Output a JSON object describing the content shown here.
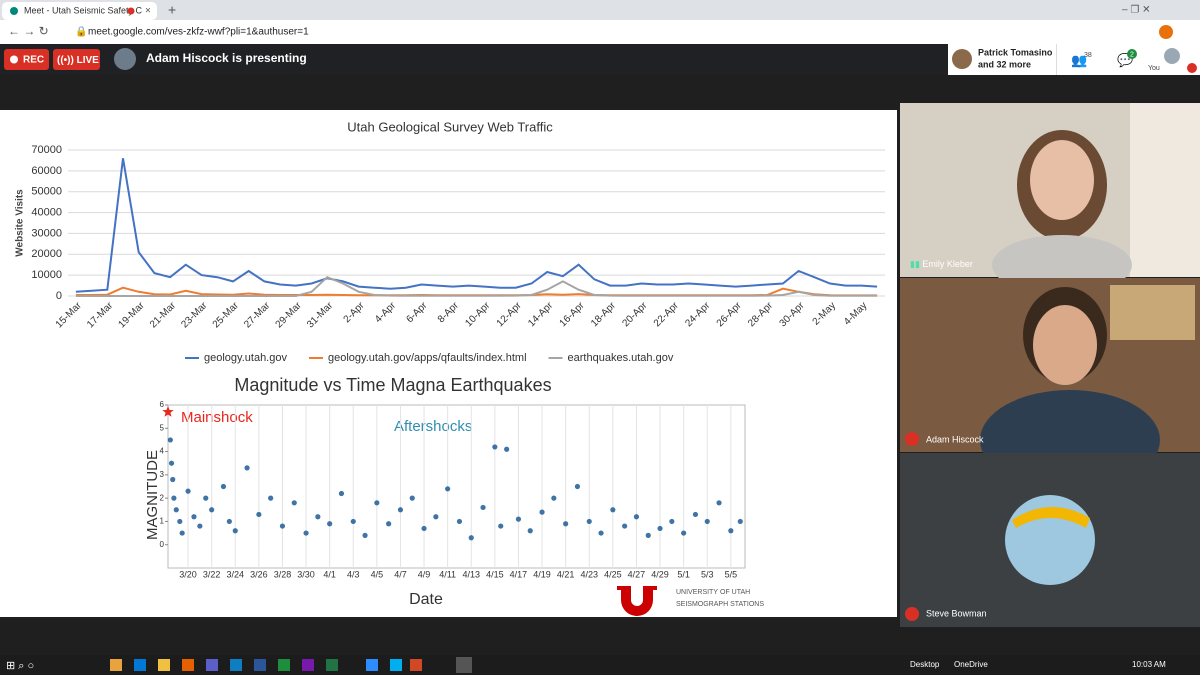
{
  "browser": {
    "tab_title": "Meet - Utah Seismic Safety C",
    "url": "meet.google.com/ves-zkfz-wwf?pli=1&authuser=1"
  },
  "meet": {
    "rec": "REC",
    "live": "LIVE",
    "presenting": "Adam Hiscock is presenting",
    "participants_name": "Patrick Tomasino",
    "participants_more": "and 32 more",
    "participant_count": 38,
    "chat_count": 2,
    "self_label": "You"
  },
  "slide": {
    "web_traffic": {
      "type": "line",
      "title": "Utah Geological Survey Web Traffic",
      "y_label": "Website Visits",
      "categories": [
        "15-Mar",
        null,
        "17-Mar",
        null,
        "19-Mar",
        null,
        "21-Mar",
        null,
        "23-Mar",
        null,
        "25-Mar",
        null,
        "27-Mar",
        null,
        "29-Mar",
        null,
        "31-Mar",
        null,
        "2-Apr",
        null,
        "4-Apr",
        null,
        "6-Apr",
        null,
        "8-Apr",
        null,
        "10-Apr",
        null,
        "12-Apr",
        null,
        "14-Apr",
        null,
        "16-Apr",
        null,
        "18-Apr",
        null,
        "20-Apr",
        null,
        "22-Apr",
        null,
        "24-Apr",
        null,
        "26-Apr",
        null,
        "28-Apr",
        null,
        "30-Apr",
        null,
        "2-May",
        null,
        "4-May",
        null
      ],
      "series": [
        {
          "name": "geology.utah.gov",
          "color": "#4472c4",
          "values": [
            2000,
            2500,
            3000,
            66000,
            21000,
            11000,
            9000,
            15000,
            10000,
            9000,
            7000,
            12000,
            7000,
            5500,
            5000,
            6000,
            8500,
            7000,
            4500,
            4000,
            3500,
            4000,
            5500,
            5000,
            4500,
            5000,
            4500,
            4000,
            4000,
            6000,
            11500,
            9500,
            15000,
            8000,
            5000,
            5000,
            6000,
            5500,
            5500,
            6000,
            5500,
            5000,
            4500,
            5000,
            5500,
            6000,
            12000,
            9000,
            6000,
            5000,
            5000,
            4500
          ]
        },
        {
          "name": "geology.utah.gov/apps/qfaults/index.html",
          "color": "#ed7d31",
          "values": [
            500,
            500,
            600,
            4000,
            2000,
            800,
            700,
            2500,
            900,
            700,
            600,
            1200,
            600,
            500,
            500,
            500,
            600,
            500,
            400,
            400,
            400,
            400,
            500,
            400,
            400,
            400,
            400,
            400,
            400,
            500,
            800,
            600,
            900,
            500,
            400,
            400,
            400,
            400,
            400,
            400,
            400,
            400,
            400,
            400,
            500,
            3500,
            2000,
            800,
            400,
            300,
            300,
            300
          ]
        },
        {
          "name": "earthquakes.utah.gov",
          "color": "#a5a5a5",
          "values": [
            0,
            0,
            0,
            0,
            0,
            0,
            0,
            0,
            0,
            0,
            0,
            0,
            0,
            0,
            0,
            2000,
            9000,
            6000,
            2000,
            500,
            200,
            100,
            100,
            100,
            100,
            100,
            100,
            100,
            200,
            500,
            3000,
            7000,
            3000,
            500,
            200,
            100,
            100,
            100,
            100,
            100,
            100,
            100,
            100,
            100,
            200,
            500,
            2000,
            500,
            100,
            100,
            100,
            100
          ]
        }
      ],
      "ylim": [
        0,
        70000
      ],
      "yticks": [
        0,
        10000,
        20000,
        30000,
        40000,
        50000,
        60000,
        70000
      ],
      "grid": true
    },
    "magnitude": {
      "type": "scatter",
      "title": "Magnitude vs Time Magna Earthquakes",
      "y_label": "MAGNITUDE",
      "x_label": "Date",
      "mainshock_label": "Mainshock",
      "aftershocks_label": "Aftershocks",
      "mainshock": {
        "x": 18.3,
        "y": 5.7,
        "color": "#e8261c"
      },
      "color": "#1f5a96",
      "x": [
        18.5,
        18.6,
        18.7,
        18.8,
        19,
        19.3,
        19.5,
        20,
        20.5,
        21,
        21.5,
        22,
        23,
        23.5,
        24,
        25,
        26,
        27,
        28,
        29,
        30,
        31,
        32,
        33,
        34,
        35,
        36,
        37,
        38,
        39,
        40,
        41,
        42,
        43,
        44,
        45,
        46,
        46.5,
        47,
        48,
        49,
        50,
        51,
        52,
        53,
        54,
        55,
        56,
        57,
        58,
        59,
        60,
        61,
        62,
        63,
        64,
        65,
        66,
        66.8
      ],
      "y": [
        4.5,
        3.5,
        2.8,
        2,
        1.5,
        1,
        0.5,
        2.3,
        1.2,
        0.8,
        2,
        1.5,
        2.5,
        1,
        0.6,
        3.3,
        1.3,
        2,
        0.8,
        1.8,
        0.5,
        1.2,
        0.9,
        2.2,
        1,
        0.4,
        1.8,
        0.9,
        1.5,
        2,
        0.7,
        1.2,
        2.4,
        1,
        0.3,
        1.6,
        4.2,
        0.8,
        4.1,
        1.1,
        0.6,
        1.4,
        2,
        0.9,
        2.5,
        1,
        0.5,
        1.5,
        0.8,
        1.2,
        0.4,
        0.7,
        1,
        0.5,
        1.3,
        1,
        1.8,
        0.6,
        1
      ],
      "xlim": [
        18.3,
        67.2
      ],
      "ylim": [
        -1,
        6
      ],
      "yticks": [
        0,
        1,
        2,
        3,
        4,
        5,
        6
      ],
      "xticks": [
        {
          "value": 20,
          "label": "3/20"
        },
        {
          "value": 22,
          "label": "3/22"
        },
        {
          "value": 24,
          "label": "3/24"
        },
        {
          "value": 26,
          "label": "3/26"
        },
        {
          "value": 28,
          "label": "3/28"
        },
        {
          "value": 30,
          "label": "3/30"
        },
        {
          "value": 32,
          "label": "4/1"
        },
        {
          "value": 34,
          "label": "4/3"
        },
        {
          "value": 36,
          "label": "4/5"
        },
        {
          "value": 38,
          "label": "4/7"
        },
        {
          "value": 40,
          "label": "4/9"
        },
        {
          "value": 42,
          "label": "4/11"
        },
        {
          "value": 44,
          "label": "4/13"
        },
        {
          "value": 46,
          "label": "4/15"
        },
        {
          "value": 48,
          "label": "4/17"
        },
        {
          "value": 50,
          "label": "4/19"
        },
        {
          "value": 52,
          "label": "4/21"
        },
        {
          "value": 54,
          "label": "4/23"
        },
        {
          "value": 56,
          "label": "4/25"
        },
        {
          "value": 58,
          "label": "4/27"
        },
        {
          "value": 60,
          "label": "4/29"
        },
        {
          "value": 62,
          "label": "5/1"
        },
        {
          "value": 64,
          "label": "5/3"
        },
        {
          "value": 66,
          "label": "5/5"
        }
      ],
      "logo_line1": "UNIVERSITY",
      "logo_line2": "OF UTAH",
      "logo_line3": "SEISMOGRAPH STATIONS"
    }
  },
  "tiles": [
    {
      "name": "Emily Kleber"
    },
    {
      "name": "Adam Hiscock"
    },
    {
      "name": "Steve Bowman"
    }
  ],
  "taskbar": {
    "desktop": "Desktop",
    "onedrive": "OneDrive",
    "time": "10:03 AM"
  }
}
